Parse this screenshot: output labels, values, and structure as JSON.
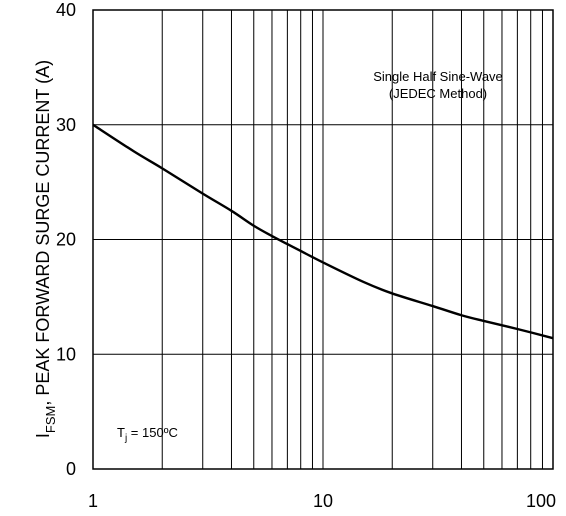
{
  "chart_data": {
    "type": "line",
    "title": "",
    "xlabel": "",
    "ylabel_main": "I",
    "ylabel_sub": "FSM",
    "ylabel_rest": ", PEAK FORWARD SURGE CURRENT (A)",
    "x_scale": "log",
    "xlim": [
      1,
      100
    ],
    "ylim": [
      0,
      40
    ],
    "x_ticks": [
      {
        "value": 1,
        "label": "1"
      },
      {
        "value": 10,
        "label": "10"
      },
      {
        "value": 100,
        "label": "100"
      }
    ],
    "y_ticks": [
      {
        "value": 0,
        "label": "0"
      },
      {
        "value": 10,
        "label": "10"
      },
      {
        "value": 20,
        "label": "20"
      },
      {
        "value": 30,
        "label": "30"
      },
      {
        "value": 40,
        "label": "40"
      }
    ],
    "grid": true,
    "annotations": {
      "method_line1": "Single Half Sine-Wave",
      "method_line2": "(JEDEC Method)",
      "tj_main": "T",
      "tj_sub": "j",
      "tj_rest": " = 150ºC"
    },
    "series": [
      {
        "x": [
          1,
          1.5,
          2,
          3,
          4,
          5,
          6,
          7,
          8,
          10,
          15,
          20,
          30,
          40,
          50,
          70,
          100
        ],
        "y": [
          30,
          27.7,
          26.2,
          24.0,
          22.5,
          21.2,
          20.3,
          19.6,
          19.0,
          18.0,
          16.3,
          15.3,
          14.2,
          13.4,
          12.9,
          12.2,
          11.4
        ]
      }
    ]
  },
  "colors": {
    "line": "#000000",
    "grid": "#000000",
    "background": "#ffffff"
  }
}
